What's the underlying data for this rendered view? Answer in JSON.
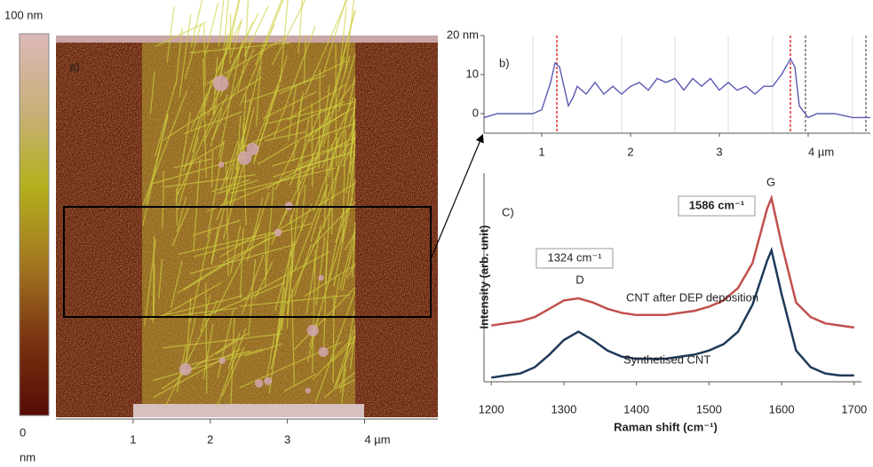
{
  "chart_data": [
    {
      "type": "image",
      "label": "a)",
      "colorbar": {
        "max_label": "100 nm",
        "min_label": [
          "0",
          "nm"
        ]
      },
      "xlim": [
        0,
        4.95
      ],
      "xticks": [
        1,
        2,
        3,
        {
          "value": 4,
          "label": "4 µm"
        }
      ]
    },
    {
      "type": "line",
      "label": "b)",
      "x": [
        0.35,
        0.5,
        0.7,
        0.9,
        1.0,
        1.1,
        1.15,
        1.2,
        1.3,
        1.35,
        1.4,
        1.5,
        1.6,
        1.7,
        1.8,
        1.9,
        2.0,
        2.1,
        2.2,
        2.3,
        2.4,
        2.5,
        2.6,
        2.7,
        2.8,
        2.9,
        3.0,
        3.1,
        3.2,
        3.3,
        3.4,
        3.5,
        3.6,
        3.7,
        3.8,
        3.85,
        3.9,
        4.0,
        4.1,
        4.3,
        4.5,
        4.7
      ],
      "series": [
        {
          "color": "#5a5ab4",
          "values": [
            -1,
            0,
            0,
            0,
            1,
            8,
            13,
            12,
            2,
            4,
            7,
            5,
            8,
            5,
            7,
            5,
            7,
            8,
            6,
            9,
            8,
            9,
            6,
            9,
            7,
            9,
            6,
            8,
            6,
            7,
            5,
            7,
            7,
            10,
            14,
            12,
            2,
            -1,
            0,
            0,
            -1,
            -1
          ]
        }
      ],
      "xlim": [
        0.35,
        4.7
      ],
      "ylim": [
        -5,
        20
      ],
      "xticks": [
        1,
        2,
        3,
        {
          "value": 4,
          "label": "4 µm"
        }
      ],
      "yticks": [
        0,
        10,
        {
          "value": 20,
          "label": "20 nm"
        }
      ]
    },
    {
      "type": "line",
      "label": "C)",
      "x_label": "Raman shift (cm⁻¹)",
      "y_label": "Intensity (arb. unit)",
      "x": [
        1200,
        1220,
        1240,
        1260,
        1280,
        1300,
        1320,
        1340,
        1360,
        1380,
        1400,
        1420,
        1440,
        1460,
        1480,
        1500,
        1520,
        1540,
        1560,
        1580,
        1586,
        1600,
        1620,
        1640,
        1660,
        1680,
        1700
      ],
      "series": [
        {
          "name": "CNT after DEP deposition",
          "color": "#c0504d",
          "values": [
            27,
            28,
            29,
            31,
            35,
            39,
            40,
            38,
            35,
            33,
            32,
            32,
            32,
            33,
            34,
            36,
            39,
            45,
            57,
            83,
            88,
            66,
            38,
            31,
            28,
            27,
            26
          ]
        },
        {
          "name": "Synthetised CNT",
          "color": "#1f3a5a",
          "values": [
            2,
            3,
            4,
            7,
            13,
            20,
            24,
            20,
            15,
            12,
            11,
            11,
            11,
            12,
            13,
            15,
            18,
            24,
            37,
            58,
            63,
            42,
            15,
            7,
            4,
            3,
            3
          ]
        }
      ],
      "xlim": [
        1190,
        1710
      ],
      "ylim": [
        0,
        100
      ],
      "xticks": [
        1200,
        1300,
        1400,
        1500,
        1600,
        1700
      ],
      "annotations": [
        "1324 cm⁻¹",
        "1586 cm⁻¹"
      ],
      "peak_labels": [
        "D",
        "G"
      ]
    }
  ]
}
